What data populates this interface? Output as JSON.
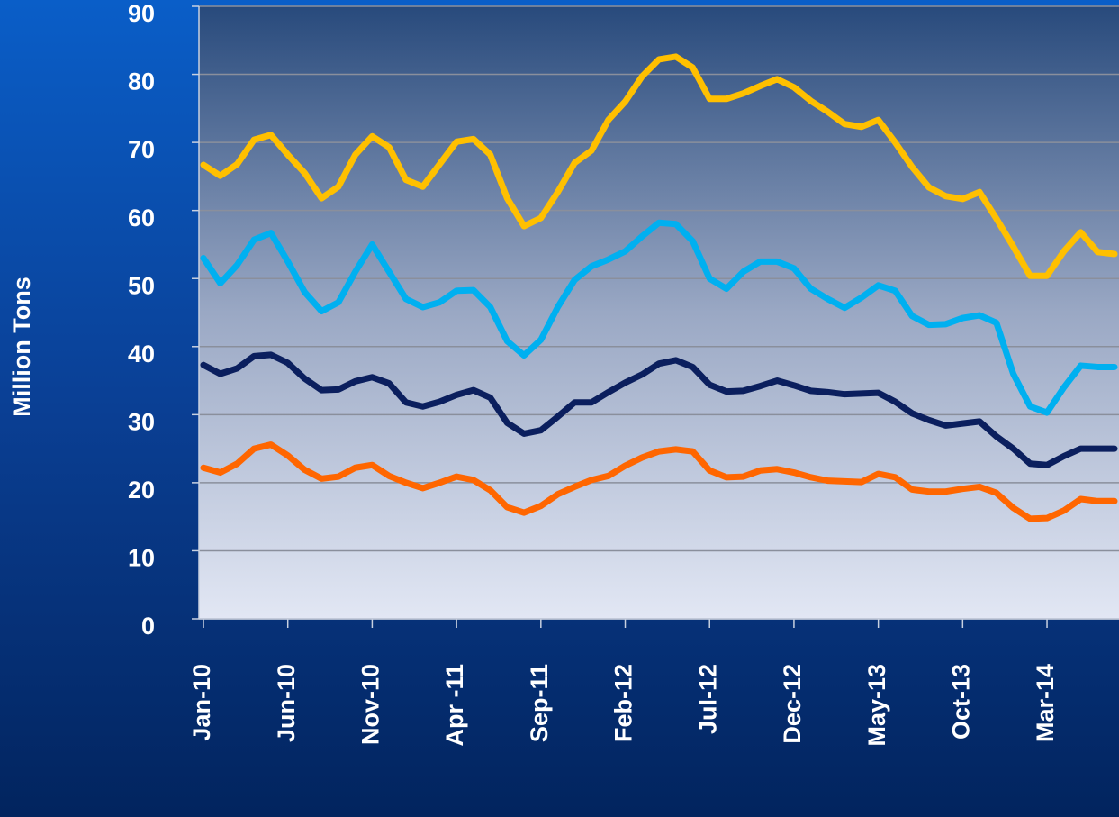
{
  "chart_data": {
    "type": "line",
    "y_label": "Million Tons",
    "categories": [
      "Jan-10",
      null,
      null,
      null,
      null,
      "Jun-10",
      null,
      null,
      null,
      null,
      "Nov-10",
      null,
      null,
      null,
      null,
      "Apr -11",
      null,
      null,
      null,
      null,
      "Sep-11",
      null,
      null,
      null,
      null,
      "Feb-12",
      null,
      null,
      null,
      null,
      "Jul-12",
      null,
      null,
      null,
      null,
      "Dec-12",
      null,
      null,
      null,
      null,
      "May-13",
      null,
      null,
      null,
      null,
      "Oct-13",
      null,
      null,
      null,
      null,
      "Mar-14",
      null,
      null,
      null,
      null
    ],
    "series": [
      {
        "color": "#ffc000",
        "values": [
          66.7,
          65.1,
          66.8,
          70.4,
          71.1,
          68.2,
          65.5,
          61.8,
          63.5,
          68.2,
          70.9,
          69.3,
          64.5,
          63.5,
          66.8,
          70.1,
          70.5,
          68.2,
          61.8,
          57.7,
          58.9,
          62.7,
          67.0,
          68.8,
          73.3,
          76.0,
          79.7,
          82.2,
          82.6,
          81.0,
          76.4,
          76.4,
          77.2,
          78.3,
          79.3,
          78.1,
          76.1,
          74.5,
          72.7,
          72.3,
          73.3,
          70.0,
          66.4,
          63.4,
          62.1,
          61.7,
          62.7,
          58.8,
          54.7,
          50.4,
          50.4,
          54.0,
          56.8,
          53.9,
          53.6
        ]
      },
      {
        "color": "#00b0f0",
        "values": [
          53.0,
          49.3,
          52.0,
          55.7,
          56.7,
          52.5,
          48.0,
          45.2,
          46.5,
          51.0,
          55.0,
          51.0,
          47.0,
          45.8,
          46.5,
          48.2,
          48.3,
          45.8,
          40.8,
          38.7,
          41.0,
          45.8,
          49.8,
          51.8,
          52.8,
          54.0,
          56.2,
          58.2,
          58.0,
          55.5,
          50.0,
          48.5,
          51.0,
          52.5,
          52.5,
          51.5,
          48.5,
          47.0,
          45.7,
          47.2,
          49.0,
          48.2,
          44.5,
          43.2,
          43.3,
          44.2,
          44.6,
          43.5,
          36.0,
          31.2,
          30.3,
          34.0,
          37.2,
          37.0,
          37.0
        ]
      },
      {
        "color": "#0b1f5e",
        "values": [
          37.3,
          36.0,
          36.8,
          38.6,
          38.8,
          37.6,
          35.3,
          33.6,
          33.7,
          34.9,
          35.5,
          34.6,
          31.8,
          31.2,
          31.9,
          32.9,
          33.6,
          32.5,
          28.8,
          27.2,
          27.7,
          29.7,
          31.8,
          31.8,
          33.3,
          34.7,
          35.9,
          37.5,
          38.0,
          37.0,
          34.4,
          33.4,
          33.5,
          34.2,
          35.0,
          34.3,
          33.5,
          33.3,
          33.0,
          33.1,
          33.2,
          31.9,
          30.2,
          29.2,
          28.4,
          28.7,
          29.0,
          26.8,
          25.0,
          22.8,
          22.6,
          23.9,
          25.0,
          25.0,
          25.0
        ]
      },
      {
        "color": "#ff6600",
        "values": [
          22.2,
          21.5,
          22.8,
          25.0,
          25.6,
          24.0,
          21.9,
          20.6,
          20.9,
          22.2,
          22.6,
          21.0,
          20.0,
          19.2,
          20.0,
          20.9,
          20.4,
          18.9,
          16.4,
          15.6,
          16.6,
          18.3,
          19.4,
          20.4,
          21.0,
          22.5,
          23.7,
          24.6,
          24.9,
          24.6,
          21.8,
          20.8,
          20.9,
          21.8,
          22.0,
          21.5,
          20.8,
          20.3,
          20.2,
          20.1,
          21.3,
          20.8,
          19.0,
          18.7,
          18.7,
          19.1,
          19.4,
          18.5,
          16.3,
          14.7,
          14.8,
          15.9,
          17.6,
          17.3,
          17.3
        ]
      }
    ],
    "ylim": [
      0,
      90
    ],
    "yticks": [
      0,
      10,
      20,
      30,
      40,
      50,
      60,
      70,
      80,
      90
    ],
    "grid": true
  }
}
